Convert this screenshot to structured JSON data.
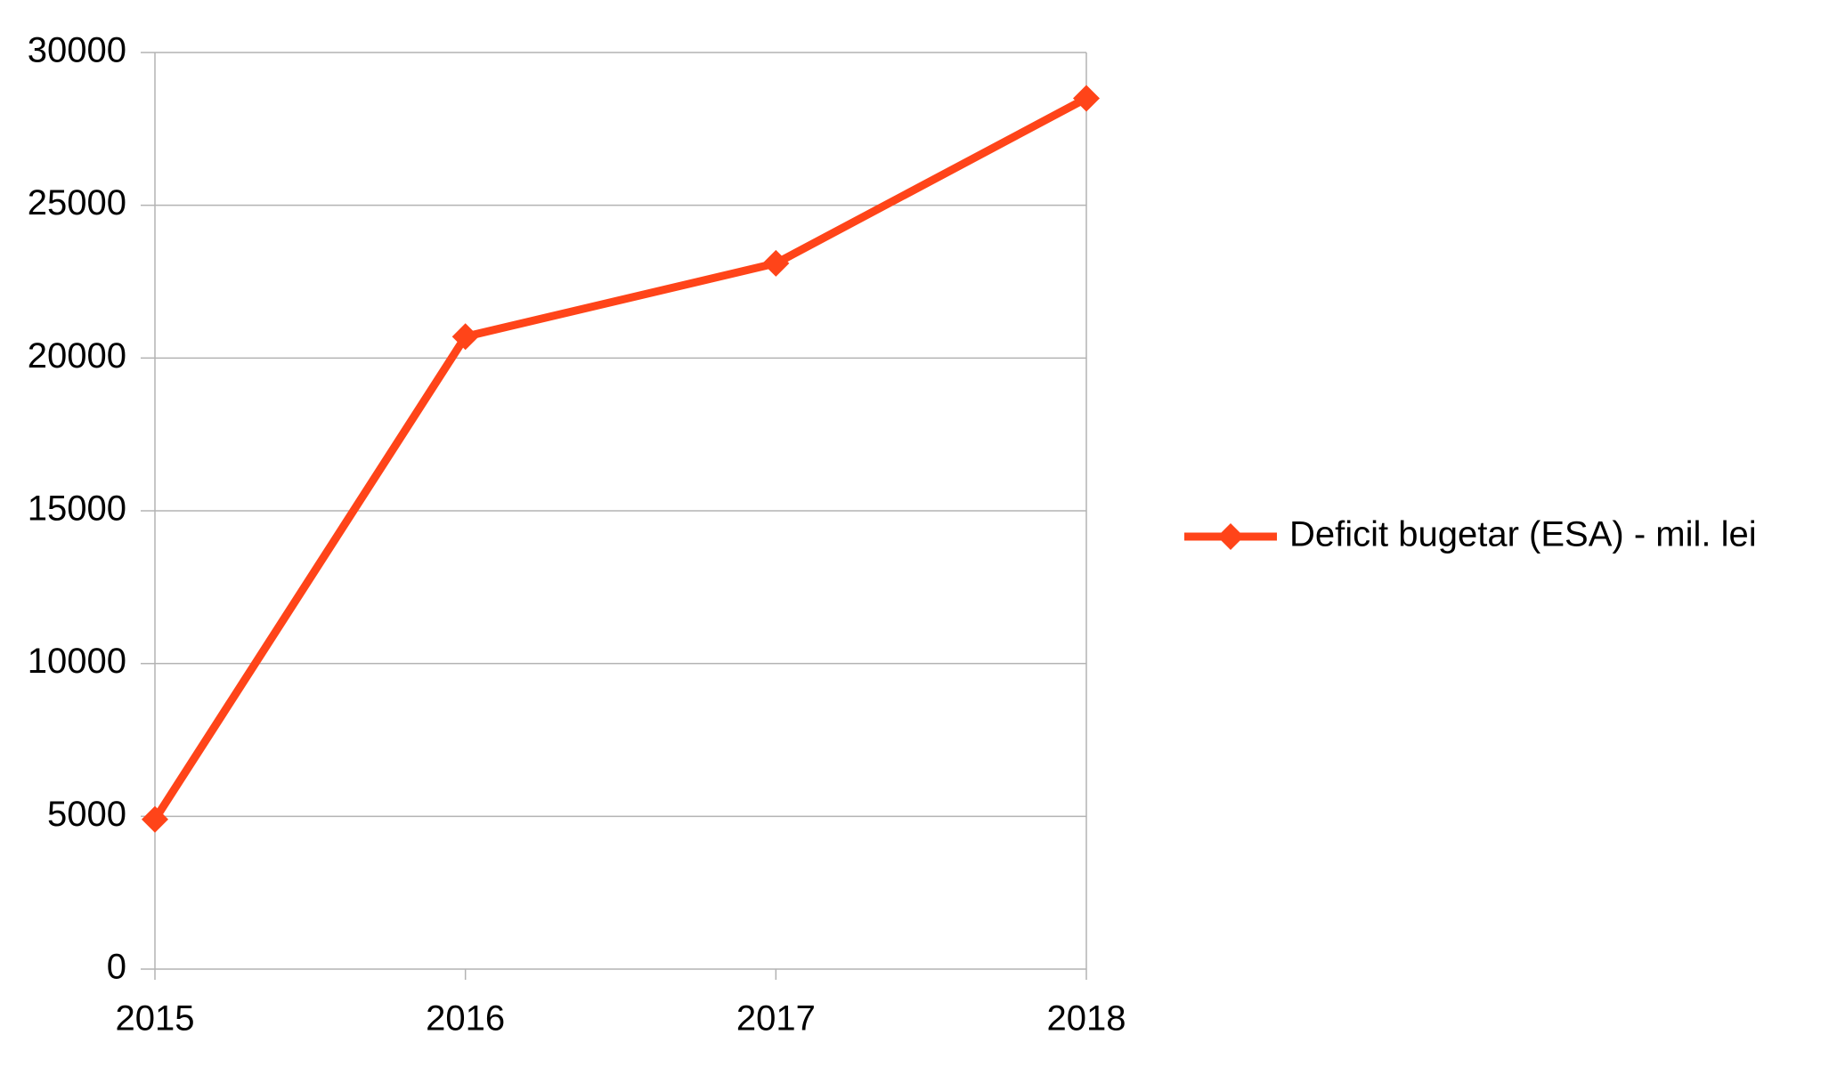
{
  "chart_data": {
    "type": "line",
    "x": [
      2015,
      2016,
      2017,
      2018
    ],
    "series": [
      {
        "name": "Deficit bugetar (ESA) - mil. lei",
        "color": "#ff4419",
        "values": [
          4900,
          20700,
          23100,
          28500
        ]
      }
    ],
    "xlim": [
      2015,
      2018
    ],
    "xticks": [
      2015,
      2016,
      2017,
      2018
    ],
    "ylim": [
      0,
      30000
    ],
    "yticks": [
      0,
      5000,
      10000,
      15000,
      20000,
      25000,
      30000
    ],
    "grid": true,
    "legend": "right"
  }
}
